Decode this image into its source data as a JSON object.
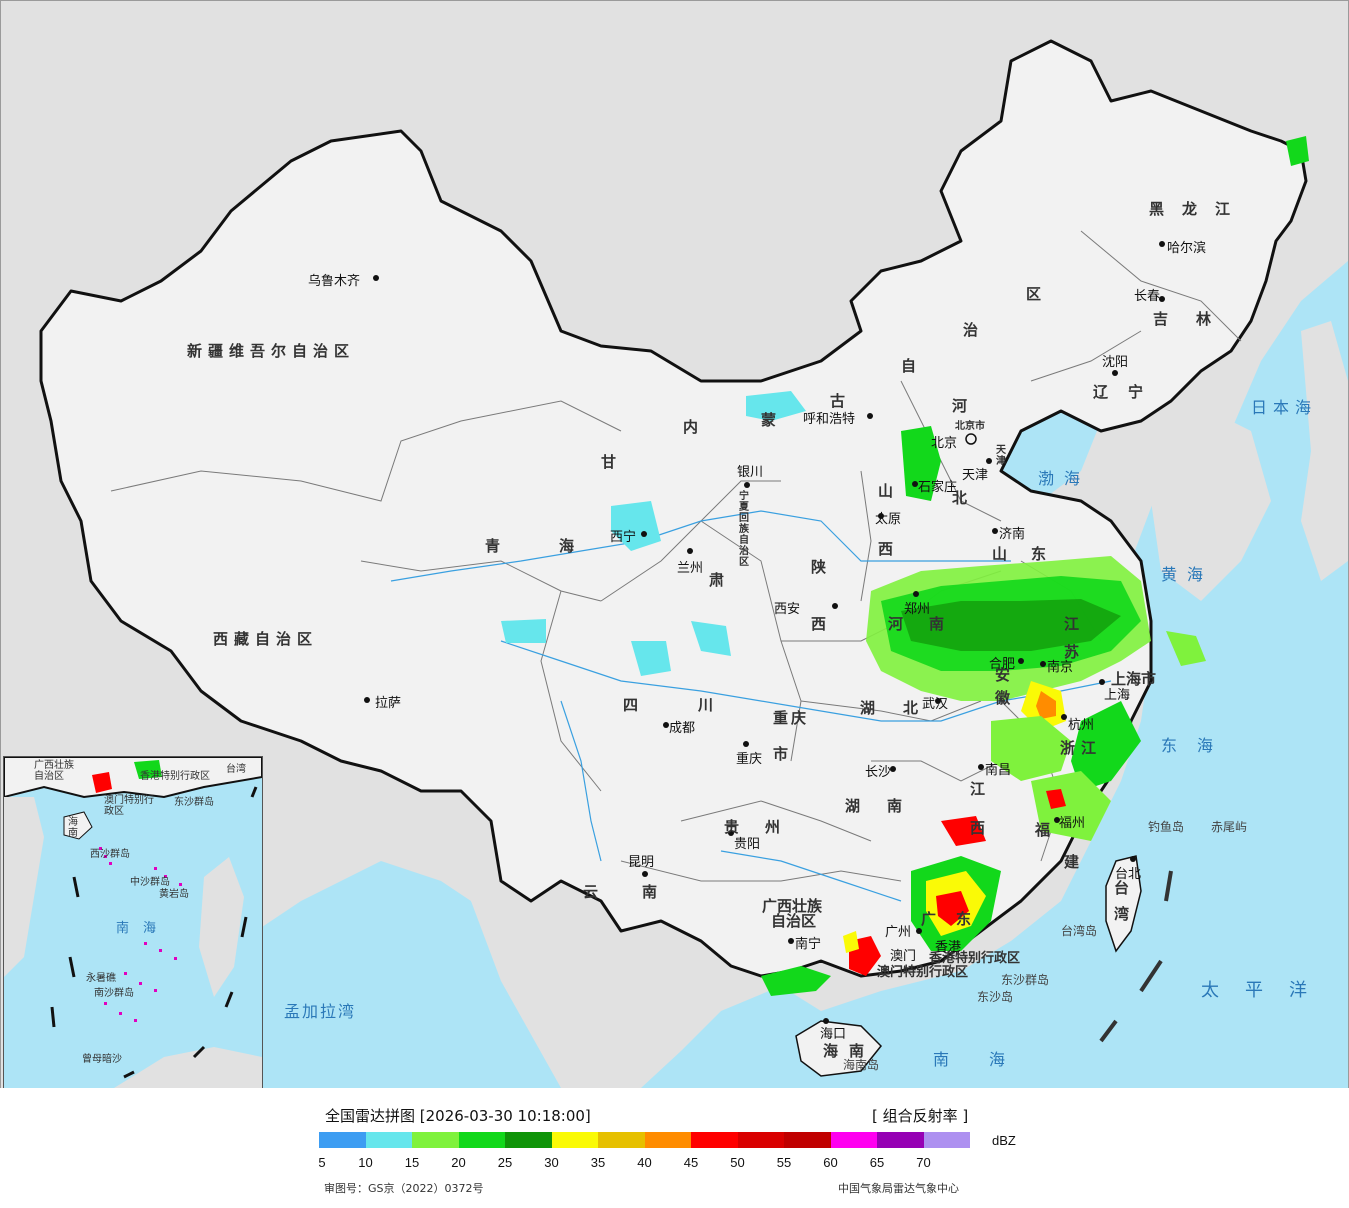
{
  "map": {
    "colors": {
      "land": "#f2f2f2",
      "sea": "#ade4f6",
      "border": "#1a1a1a",
      "province_border": "#7a7a7a",
      "river": "#3aa0e0",
      "outside": "#d9d9d9"
    },
    "provinces": [
      "新疆维吾尔自治区",
      "西藏自治区",
      "青海",
      "甘肃",
      "四川",
      "云南",
      "内蒙古",
      "黑龙江",
      "吉林",
      "辽宁",
      "河北",
      "山西",
      "陕西",
      "河南",
      "湖北",
      "湖南",
      "江西",
      "浙江",
      "福建",
      "安徽",
      "江苏",
      "山东",
      "广西壮族自治区",
      "贵州",
      "重庆市",
      "上海市",
      "海南",
      "广东",
      "宁夏回族自治区",
      "北京市",
      "天津市",
      "台湾",
      "香港特别行政区",
      "澳门特别行政区"
    ],
    "cities": [
      "乌鲁木齐",
      "拉萨",
      "西宁",
      "兰州",
      "银川",
      "呼和浩特",
      "北京",
      "天津",
      "石家庄",
      "太原",
      "济南",
      "郑州",
      "西安",
      "成都",
      "重庆",
      "贵阳",
      "昆明",
      "南宁",
      "广州",
      "澳门",
      "香港",
      "长沙",
      "武汉",
      "南昌",
      "合肥",
      "南京",
      "上海",
      "杭州",
      "福州",
      "台北",
      "海口",
      "沈阳",
      "长春",
      "哈尔滨"
    ],
    "seas": [
      "渤海",
      "黄海",
      "东海",
      "南海",
      "日本海",
      "太平洋",
      "孟加拉湾"
    ],
    "islands": [
      "钓鱼岛",
      "赤尾屿",
      "台湾岛",
      "东沙群岛",
      "东沙岛",
      "海南岛"
    ],
    "inset_labels": [
      "台湾",
      "广西壮族自治区",
      "香港特别行政区",
      "澳门特别行政区",
      "东沙群岛",
      "海南",
      "西沙群岛",
      "中沙群岛",
      "黄岩岛",
      "南沙群岛",
      "永暑礁",
      "曾母暗沙",
      "南海"
    ]
  },
  "labels": {
    "xinjiang": "新疆维吾尔自治区",
    "xizang": "西藏自治区",
    "qinghai_1": "青",
    "qinghai_2": "海",
    "gansu_1": "甘",
    "gansu_2": "肃",
    "sichuan_1": "四",
    "sichuan_2": "川",
    "yunnan_1": "云",
    "yunnan_2": "南",
    "neimeng_1": "内",
    "neimeng_2": "蒙",
    "neimeng_3": "古",
    "neimeng_4": "自",
    "neimeng_5": "治",
    "neimeng_6": "区",
    "heilongjiang": "黑龙江",
    "jilin": "吉林",
    "liaoning": "辽宁",
    "hebei_1": "河",
    "hebei_2": "北",
    "shanxi_1": "山",
    "shanxi_2": "西",
    "shaanxi_1": "陕",
    "shaanxi_2": "西",
    "henan_1": "河",
    "henan_2": "南",
    "hubei_1": "湖",
    "hubei_2": "北",
    "hunan_1": "湖",
    "hunan_2": "南",
    "jiangxi_1": "江",
    "jiangxi_2": "西",
    "zhejiang": "浙江",
    "fujian_1": "福",
    "fujian_2": "建",
    "anhui_1": "安",
    "anhui_2": "徽",
    "jiangsu_1": "江",
    "jiangsu_2": "苏",
    "shandong_1": "山",
    "shandong_2": "东",
    "guangxi_1": "广西壮族",
    "guangxi_2": "自治区",
    "guizhou_1": "贵",
    "guizhou_2": "州",
    "chongqing_1": "重",
    "chongqing_2": "庆",
    "chongqing_3": "市",
    "shanghai": "上海市",
    "hainan_1": "海",
    "hainan_2": "南",
    "guangdong_1": "广",
    "guangdong_2": "东",
    "ningxia": "宁夏回族自治区",
    "beijing": "北京市",
    "tianjin": "天津",
    "taiwan_1": "台",
    "taiwan_2": "湾",
    "hongkong": "香港特别行政区",
    "macao": "澳门特别行政区",
    "gansu_lz_1": "兰",
    "gansu_lz_2": "州",
    "c_urumqi": "乌鲁木齐",
    "c_lhasa": "拉萨",
    "c_xining": "西宁",
    "c_lanzhou": "兰州",
    "c_yinchuan": "银川",
    "c_huhehaote": "呼和浩特",
    "c_beijing": "北京",
    "c_tianjin": "天津",
    "c_shijiazhuang": "石家庄",
    "c_taiyuan": "太原",
    "c_jinan": "济南",
    "c_zhengzhou": "郑州",
    "c_xian": "西安",
    "c_chengdu": "成都",
    "c_chongqing": "重庆",
    "c_guiyang": "贵阳",
    "c_kunming": "昆明",
    "c_nanning": "南宁",
    "c_guangzhou": "广州",
    "c_macao": "澳门",
    "c_hk": "香港",
    "c_changsha": "长沙",
    "c_wuhan": "武汉",
    "c_nanchang": "南昌",
    "c_hefei": "合肥",
    "c_nanjing": "南京",
    "c_shanghai": "上海",
    "c_hangzhou": "杭州",
    "c_fuzhou": "福州",
    "c_taipei": "台北",
    "c_haikou": "海口",
    "c_shenyang": "沈阳",
    "c_changchun": "长春",
    "c_harbin": "哈尔滨",
    "s_bohai": "渤海",
    "s_huanghai": "黄海",
    "s_donghai": "东海",
    "s_nanhai": "南海",
    "s_japan": "日本海",
    "s_pacific": "太平洋",
    "s_bengal": "孟加拉湾",
    "i_diaoyu": "钓鱼岛",
    "i_chiwei": "赤尾屿",
    "i_taiwan": "台湾岛",
    "i_dongsha_q": "东沙群岛",
    "i_dongsha": "东沙岛",
    "i_hainan": "海南岛"
  },
  "inset": {
    "taiwan": "台湾",
    "guangxi": "广西壮族自治区",
    "hk": "香港特别行政区",
    "macao": "澳门特别行政区",
    "dongsha": "东沙群岛",
    "hainan": "海南",
    "xisha": "西沙群岛",
    "zhongsha": "中沙群岛",
    "huangyan": "黄岩岛",
    "nansha": "南沙群岛",
    "yongshu": "永暑礁",
    "zengmu": "曾母暗沙",
    "nanhai": "南海"
  },
  "legend": {
    "title": "全国雷达拼图 [2026-03-30 10:18:00]",
    "product": "[ 组合反射率 ]",
    "unit": "dBZ",
    "colors": [
      "#3d9df2",
      "#66e6ec",
      "#7ff23d",
      "#12d81b",
      "#0f9408",
      "#fafa06",
      "#e6c000",
      "#ff8c00",
      "#ff0000",
      "#d90000",
      "#c00000",
      "#ff00f0",
      "#9600b4",
      "#ad90f0"
    ],
    "ticks": [
      "5",
      "10",
      "15",
      "20",
      "25",
      "30",
      "35",
      "40",
      "45",
      "50",
      "55",
      "60",
      "65",
      "70"
    ]
  },
  "footer": {
    "approval": "审图号：GS京（2022）0372号",
    "agency": "中国气象局雷达气象中心"
  }
}
